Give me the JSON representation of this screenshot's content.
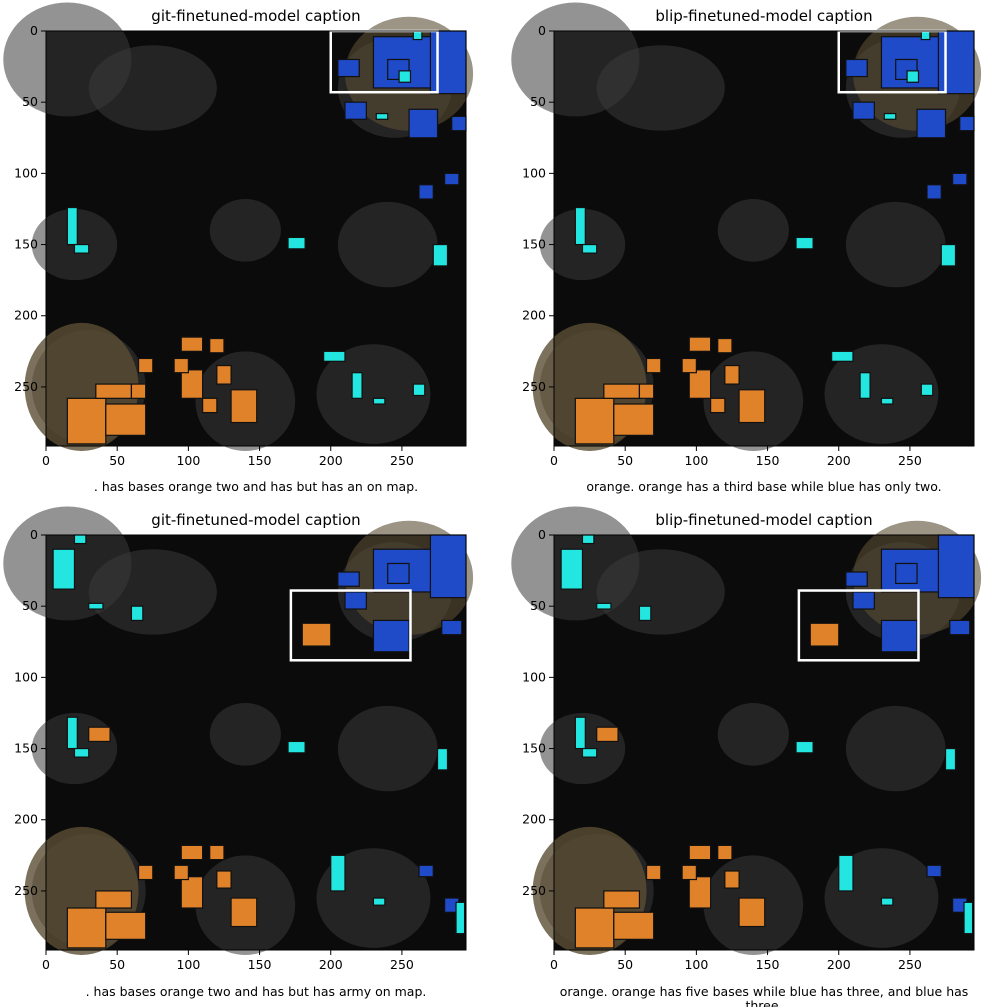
{
  "panels": [
    {
      "title": "git-finetuned-model caption",
      "caption": ". has bases orange two and has but has an on map.",
      "box": [
        200,
        0,
        275,
        43
      ],
      "orange": [
        [
          15,
          258,
          42,
          290
        ],
        [
          42,
          262,
          70,
          284
        ],
        [
          35,
          248,
          60,
          258
        ],
        [
          95,
          238,
          110,
          258
        ],
        [
          130,
          252,
          148,
          275
        ],
        [
          65,
          230,
          75,
          240
        ],
        [
          90,
          230,
          100,
          240
        ],
        [
          120,
          235,
          130,
          248
        ],
        [
          95,
          215,
          110,
          225
        ],
        [
          115,
          216,
          125,
          226
        ],
        [
          60,
          248,
          70,
          258
        ],
        [
          110,
          258,
          120,
          268
        ]
      ],
      "blue": [
        [
          230,
          4,
          275,
          40
        ],
        [
          270,
          0,
          295,
          44
        ],
        [
          255,
          55,
          275,
          75
        ],
        [
          285,
          60,
          295,
          70
        ],
        [
          210,
          50,
          225,
          62
        ],
        [
          240,
          20,
          255,
          34
        ],
        [
          205,
          20,
          220,
          32
        ],
        [
          280,
          100,
          290,
          108
        ],
        [
          262,
          108,
          272,
          118
        ]
      ],
      "cyan": [
        [
          232,
          58,
          240,
          62
        ],
        [
          248,
          28,
          256,
          36
        ],
        [
          258,
          0,
          264,
          6
        ],
        [
          15,
          124,
          22,
          150
        ],
        [
          20,
          150,
          30,
          156
        ],
        [
          170,
          145,
          182,
          153
        ],
        [
          195,
          225,
          210,
          232
        ],
        [
          215,
          240,
          222,
          258
        ],
        [
          230,
          258,
          238,
          262
        ],
        [
          258,
          248,
          266,
          256
        ],
        [
          272,
          150,
          282,
          165
        ]
      ]
    },
    {
      "title": "blip-finetuned-model caption",
      "caption": "orange. orange has a third base while blue has only two.",
      "box": [
        200,
        0,
        275,
        43
      ],
      "orange": [
        [
          15,
          258,
          42,
          290
        ],
        [
          42,
          262,
          70,
          284
        ],
        [
          35,
          248,
          60,
          258
        ],
        [
          95,
          238,
          110,
          258
        ],
        [
          130,
          252,
          148,
          275
        ],
        [
          65,
          230,
          75,
          240
        ],
        [
          90,
          230,
          100,
          240
        ],
        [
          120,
          235,
          130,
          248
        ],
        [
          95,
          215,
          110,
          225
        ],
        [
          115,
          216,
          125,
          226
        ],
        [
          60,
          248,
          70,
          258
        ],
        [
          110,
          258,
          120,
          268
        ]
      ],
      "blue": [
        [
          230,
          4,
          275,
          40
        ],
        [
          270,
          0,
          295,
          44
        ],
        [
          255,
          55,
          275,
          75
        ],
        [
          285,
          60,
          295,
          70
        ],
        [
          210,
          50,
          225,
          62
        ],
        [
          240,
          20,
          255,
          34
        ],
        [
          205,
          20,
          220,
          32
        ],
        [
          280,
          100,
          290,
          108
        ],
        [
          262,
          108,
          272,
          118
        ]
      ],
      "cyan": [
        [
          232,
          58,
          240,
          62
        ],
        [
          248,
          28,
          256,
          36
        ],
        [
          258,
          0,
          264,
          6
        ],
        [
          15,
          124,
          22,
          150
        ],
        [
          20,
          150,
          30,
          156
        ],
        [
          170,
          145,
          182,
          153
        ],
        [
          195,
          225,
          210,
          232
        ],
        [
          215,
          240,
          222,
          258
        ],
        [
          230,
          258,
          238,
          262
        ],
        [
          258,
          248,
          266,
          256
        ],
        [
          272,
          150,
          282,
          165
        ]
      ]
    },
    {
      "title": "git-finetuned-model caption",
      "caption": ". has bases orange two and has but has army on map.",
      "box": [
        172,
        39,
        256,
        88
      ],
      "orange": [
        [
          15,
          262,
          42,
          290
        ],
        [
          42,
          265,
          70,
          284
        ],
        [
          35,
          250,
          60,
          262
        ],
        [
          95,
          240,
          110,
          262
        ],
        [
          130,
          255,
          148,
          275
        ],
        [
          65,
          232,
          75,
          242
        ],
        [
          90,
          232,
          100,
          242
        ],
        [
          120,
          236,
          130,
          248
        ],
        [
          180,
          62,
          200,
          78
        ],
        [
          30,
          135,
          45,
          145
        ],
        [
          95,
          218,
          110,
          228
        ],
        [
          115,
          218,
          125,
          228
        ]
      ],
      "blue": [
        [
          230,
          10,
          275,
          40
        ],
        [
          270,
          0,
          295,
          44
        ],
        [
          230,
          60,
          255,
          82
        ],
        [
          278,
          60,
          292,
          70
        ],
        [
          210,
          40,
          225,
          52
        ],
        [
          240,
          20,
          255,
          34
        ],
        [
          205,
          26,
          220,
          36
        ],
        [
          262,
          232,
          272,
          240
        ],
        [
          280,
          255,
          290,
          265
        ]
      ],
      "cyan": [
        [
          5,
          10,
          20,
          38
        ],
        [
          20,
          0,
          28,
          6
        ],
        [
          30,
          48,
          40,
          52
        ],
        [
          60,
          50,
          68,
          60
        ],
        [
          15,
          128,
          22,
          150
        ],
        [
          20,
          150,
          30,
          156
        ],
        [
          170,
          145,
          182,
          153
        ],
        [
          275,
          150,
          282,
          165
        ],
        [
          200,
          225,
          210,
          250
        ],
        [
          230,
          255,
          238,
          260
        ],
        [
          288,
          258,
          294,
          280
        ]
      ]
    },
    {
      "title": "blip-finetuned-model caption",
      "caption": "orange. orange has five bases while blue has three, and blue has three.",
      "box": [
        172,
        39,
        256,
        88
      ],
      "orange": [
        [
          15,
          262,
          42,
          290
        ],
        [
          42,
          265,
          70,
          284
        ],
        [
          35,
          250,
          60,
          262
        ],
        [
          95,
          240,
          110,
          262
        ],
        [
          130,
          255,
          148,
          275
        ],
        [
          65,
          232,
          75,
          242
        ],
        [
          90,
          232,
          100,
          242
        ],
        [
          120,
          236,
          130,
          248
        ],
        [
          180,
          62,
          200,
          78
        ],
        [
          30,
          135,
          45,
          145
        ],
        [
          95,
          218,
          110,
          228
        ],
        [
          115,
          218,
          125,
          228
        ]
      ],
      "blue": [
        [
          230,
          10,
          275,
          40
        ],
        [
          270,
          0,
          295,
          44
        ],
        [
          230,
          60,
          255,
          82
        ],
        [
          278,
          60,
          292,
          70
        ],
        [
          210,
          40,
          225,
          52
        ],
        [
          240,
          20,
          255,
          34
        ],
        [
          205,
          26,
          220,
          36
        ],
        [
          262,
          232,
          272,
          240
        ],
        [
          280,
          255,
          290,
          265
        ]
      ],
      "cyan": [
        [
          5,
          10,
          20,
          38
        ],
        [
          20,
          0,
          28,
          6
        ],
        [
          30,
          48,
          40,
          52
        ],
        [
          60,
          50,
          68,
          60
        ],
        [
          15,
          128,
          22,
          150
        ],
        [
          20,
          150,
          30,
          156
        ],
        [
          170,
          145,
          182,
          153
        ],
        [
          275,
          150,
          282,
          165
        ],
        [
          200,
          225,
          210,
          250
        ],
        [
          230,
          255,
          238,
          260
        ],
        [
          288,
          258,
          294,
          280
        ]
      ]
    }
  ],
  "axis": {
    "xticks": [
      "0",
      "50",
      "100",
      "150",
      "200",
      "250"
    ],
    "yticks": [
      "0",
      "50",
      "100",
      "150",
      "200",
      "250"
    ]
  },
  "colors": {
    "map_bg": "#0b0b0b",
    "terrain_dark": "#3a3a3a",
    "terrain_brown": "#5a4d33",
    "orange_unit": "#e0822a",
    "blue_unit": "#1f4bc8",
    "cyan_unit": "#22e6df",
    "highlight_box": "#ffffff"
  }
}
